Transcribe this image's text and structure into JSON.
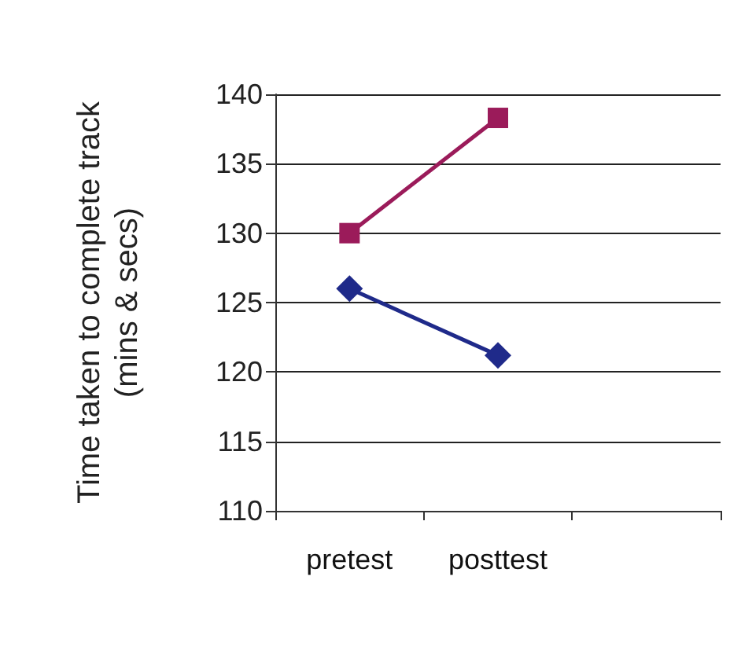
{
  "chart_data": {
    "type": "line",
    "ylabel": "Time taken to complete track\n(mins & secs)",
    "categories": [
      "pretest",
      "posttest",
      null
    ],
    "series": [
      {
        "color": "#1f2a8a",
        "values": [
          126,
          121.2,
          null
        ],
        "marker": "diamond"
      },
      {
        "color": "#9b1b5a",
        "values": [
          130,
          138.3,
          null
        ],
        "marker": "square"
      }
    ],
    "ylim": [
      110,
      140
    ],
    "yticks": [
      110,
      115,
      120,
      125,
      130,
      135,
      140
    ],
    "grid": "y"
  }
}
